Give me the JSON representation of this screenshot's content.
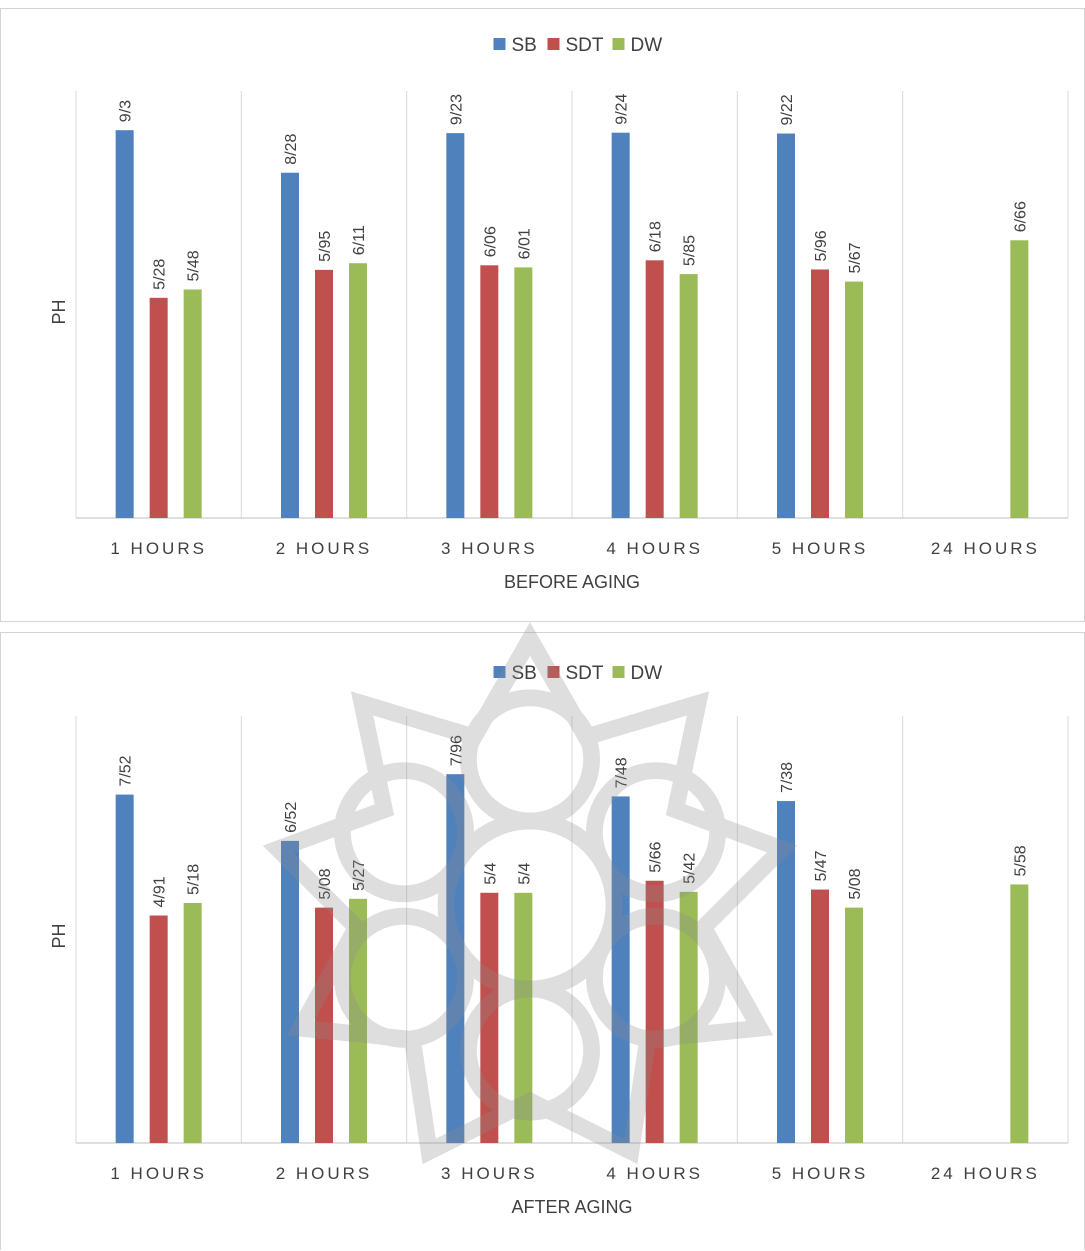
{
  "colors": {
    "SB": "#4f81bd",
    "SDT": "#c0504d",
    "DW": "#9bbb59",
    "grid": "#d9d9d9",
    "axis": "#bfbfbf"
  },
  "chart_data": [
    {
      "type": "bar",
      "title": "",
      "xlabel": "BEFORE AGING",
      "ylabel": "PH",
      "categories": [
        "1 HOURS",
        "2 HOURS",
        "3 HOURS",
        "4 HOURS",
        "5 HOURS",
        "24 HOURS"
      ],
      "legend": [
        "SB",
        "SDT",
        "DW"
      ],
      "legend_position": "top",
      "ylim": [
        0,
        10
      ],
      "series": [
        {
          "name": "SB",
          "values": [
            9.3,
            8.28,
            9.23,
            9.24,
            9.22,
            null
          ],
          "labels": [
            "9/3",
            "8/28",
            "9/23",
            "9/24",
            "9/22",
            ""
          ]
        },
        {
          "name": "SDT",
          "values": [
            5.28,
            5.95,
            6.06,
            6.18,
            5.96,
            null
          ],
          "labels": [
            "5/28",
            "5/95",
            "6/06",
            "6/18",
            "5/96",
            ""
          ]
        },
        {
          "name": "DW",
          "values": [
            5.48,
            6.11,
            6.01,
            5.85,
            5.67,
            6.66
          ],
          "labels": [
            "5/48",
            "6/11",
            "6/01",
            "5/85",
            "5/67",
            "6/66"
          ]
        }
      ]
    },
    {
      "type": "bar",
      "title": "",
      "xlabel": "AFTER AGING",
      "ylabel": "PH",
      "categories": [
        "1 HOURS",
        "2 HOURS",
        "3 HOURS",
        "4 HOURS",
        "5 HOURS",
        "24 HOURS"
      ],
      "legend": [
        "SB",
        "SDT",
        "DW"
      ],
      "legend_position": "top",
      "ylim": [
        0,
        9
      ],
      "series": [
        {
          "name": "SB",
          "values": [
            7.52,
            6.52,
            7.96,
            7.48,
            7.38,
            null
          ],
          "labels": [
            "7/52",
            "6/52",
            "7/96",
            "7/48",
            "7/38",
            ""
          ]
        },
        {
          "name": "SDT",
          "values": [
            4.91,
            5.08,
            5.4,
            5.66,
            5.47,
            null
          ],
          "labels": [
            "4/91",
            "5/08",
            "5/4",
            "5/66",
            "5/47",
            ""
          ]
        },
        {
          "name": "DW",
          "values": [
            5.18,
            5.27,
            5.4,
            5.42,
            5.08,
            5.58
          ],
          "labels": [
            "5/18",
            "5/27",
            "5/4",
            "5/42",
            "5/08",
            "5/58"
          ]
        }
      ]
    }
  ]
}
